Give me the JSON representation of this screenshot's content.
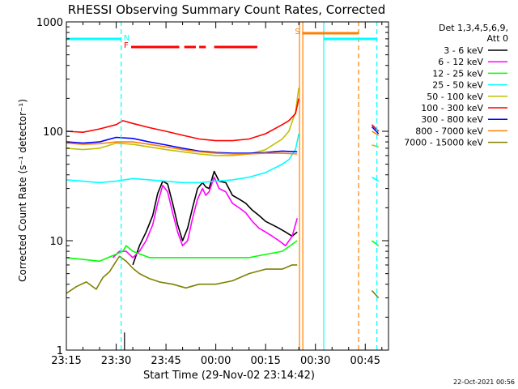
{
  "chart_data": {
    "type": "line",
    "title": "RHESSI Observing Summary Count Rates, Corrected",
    "xlabel": "Start Time (29-Nov-02 23:14:42)",
    "ylabel": "Corrected Count Rate (s⁻¹ detector⁻¹)",
    "yscale": "log",
    "ylim": [
      1,
      1000
    ],
    "xlim_minutes_after_23_15": [
      0,
      97
    ],
    "x_tick_labels": [
      "23:15",
      "23:30",
      "23:45",
      "00:00",
      "00:15",
      "00:30",
      "00:45"
    ],
    "x_tick_minutes": [
      0,
      15,
      30,
      45,
      60,
      75,
      90
    ],
    "y_tick_labels": [
      "1",
      "10",
      "100",
      "1000"
    ],
    "y_tick_values": [
      1,
      10,
      100,
      1000
    ],
    "legend_header": [
      "Det 1,3,4,5,6,9,",
      "Att 0"
    ],
    "legend_position": "right",
    "timestamp": "22-Oct-2021 00:56",
    "flags": [
      {
        "label": "N",
        "color": "#00ffff",
        "segments": [
          [
            0,
            16.5
          ],
          [
            77.5,
            93.5
          ]
        ]
      },
      {
        "label": "F",
        "color": "#ff0000",
        "segments": [
          [
            19.5,
            34
          ],
          [
            35.5,
            39
          ],
          [
            40,
            42
          ],
          [
            44.5,
            57.5
          ]
        ]
      },
      {
        "label": "S",
        "color": "#ff8000",
        "segments": [
          [
            71,
            88
          ]
        ]
      }
    ],
    "vlines": [
      {
        "x": 16.5,
        "color": "#00ffff",
        "style": "dashed",
        "ymax": 1000
      },
      {
        "x": 17.5,
        "color": "#000000",
        "style": "solid",
        "ymax": 1.45
      },
      {
        "x": 70.2,
        "color": "#ff8000",
        "style": "solid",
        "ymax": 1000
      },
      {
        "x": 71.2,
        "color": "#ff8000",
        "style": "solid",
        "ymax": 1000
      },
      {
        "x": 77.5,
        "color": "#00ffff",
        "style": "solid",
        "ymax": 1000
      },
      {
        "x": 88,
        "color": "#ff8000",
        "style": "dashed",
        "ymax": 1000
      },
      {
        "x": 93.5,
        "color": "#00ffff",
        "style": "dashed",
        "ymax": 1000
      }
    ],
    "series": [
      {
        "name": "3 - 6 keV",
        "color": "#000000",
        "x": [
          20,
          22,
          24,
          26,
          27.5,
          29,
          30.5,
          32,
          33.5,
          35,
          36.5,
          38,
          39.5,
          41,
          42,
          43,
          44.5,
          46,
          48,
          50,
          52,
          54,
          56,
          58,
          60,
          62,
          64,
          66,
          68,
          69.5
        ],
        "y": [
          6,
          9,
          12,
          17,
          27,
          35,
          33,
          22,
          14,
          10,
          13,
          20,
          30,
          34,
          31,
          30,
          43,
          35,
          34,
          26,
          24,
          22,
          19,
          17,
          15,
          14,
          13,
          12,
          11,
          12
        ]
      },
      {
        "name": "6 - 12 keV",
        "color": "#ff00ff",
        "x": [
          14,
          16,
          18,
          20,
          22,
          24,
          26,
          27.5,
          29,
          30.5,
          32,
          33.5,
          35,
          36.5,
          38,
          39.5,
          41,
          42,
          43,
          44.5,
          46,
          48,
          50,
          52,
          54,
          56,
          58,
          60,
          62,
          64,
          66,
          68,
          69.5
        ],
        "y": [
          7,
          8,
          8,
          7,
          8,
          10,
          14,
          22,
          32,
          28,
          18,
          12,
          9,
          10,
          16,
          24,
          30,
          26,
          28,
          38,
          30,
          28,
          22,
          20,
          18,
          15,
          13,
          12,
          11,
          10,
          9,
          11,
          16
        ]
      },
      {
        "name": "12 - 25 keV",
        "color": "#00ff00",
        "x": [
          0,
          10,
          17,
          18,
          20,
          25,
          30,
          35,
          40,
          45,
          50,
          55,
          60,
          65,
          69.5,
          92,
          94
        ],
        "y": [
          7,
          6.5,
          8,
          9,
          8,
          7,
          7,
          7,
          7,
          7,
          7,
          7,
          7.5,
          8,
          10,
          10,
          9
        ]
      },
      {
        "name": "25 - 50 keV",
        "color": "#00ffff",
        "x": [
          0,
          5,
          10,
          15,
          20,
          25,
          30,
          35,
          40,
          45,
          50,
          55,
          60,
          65,
          67,
          69,
          70,
          92,
          94
        ],
        "y": [
          36,
          35,
          34,
          35,
          37,
          36,
          35,
          34,
          34,
          35,
          36,
          38,
          42,
          50,
          55,
          68,
          95,
          38,
          35
        ]
      },
      {
        "name": "50 - 100 keV",
        "color": "#c0c000",
        "x": [
          0,
          5,
          10,
          15,
          20,
          25,
          30,
          35,
          40,
          45,
          50,
          55,
          60,
          65,
          67,
          69,
          70,
          92,
          94
        ],
        "y": [
          70,
          68,
          70,
          78,
          76,
          72,
          68,
          65,
          62,
          60,
          60,
          62,
          68,
          85,
          100,
          150,
          250,
          75,
          72
        ]
      },
      {
        "name": "100 - 300 keV",
        "color": "#ff0000",
        "x": [
          0,
          5,
          10,
          15,
          17,
          20,
          25,
          30,
          35,
          40,
          45,
          50,
          55,
          60,
          65,
          67,
          69,
          70,
          92,
          94
        ],
        "y": [
          100,
          98,
          105,
          115,
          125,
          118,
          108,
          100,
          92,
          85,
          82,
          82,
          85,
          95,
          115,
          125,
          145,
          200,
          115,
          100
        ]
      },
      {
        "name": "300 - 800 keV",
        "color": "#0000ff",
        "x": [
          0,
          5,
          10,
          15,
          20,
          25,
          30,
          35,
          40,
          45,
          50,
          55,
          60,
          65,
          69.5,
          92,
          94
        ],
        "y": [
          80,
          78,
          80,
          88,
          86,
          80,
          75,
          70,
          66,
          64,
          63,
          63,
          64,
          66,
          65,
          110,
          95
        ]
      },
      {
        "name": "800 - 7000 keV",
        "color": "#ff8000",
        "x": [
          0,
          5,
          10,
          15,
          20,
          25,
          30,
          35,
          40,
          45,
          50,
          55,
          60,
          65,
          69.5,
          92,
          94
        ],
        "y": [
          78,
          76,
          77,
          80,
          80,
          76,
          72,
          68,
          65,
          63,
          62,
          62,
          63,
          63,
          62,
          100,
          92
        ]
      },
      {
        "name": "7000 - 15000 keV",
        "color": "#808000",
        "x": [
          0,
          3,
          6,
          9,
          11,
          13,
          15,
          16,
          18,
          20,
          22,
          25,
          28,
          32,
          36,
          40,
          45,
          50,
          55,
          60,
          65,
          68,
          69.5,
          92,
          94
        ],
        "y": [
          3.3,
          3.8,
          4.2,
          3.6,
          4.6,
          5.2,
          6.5,
          7.2,
          6.5,
          5.6,
          5.0,
          4.5,
          4.2,
          4.0,
          3.7,
          4.0,
          4.0,
          4.3,
          5.0,
          5.5,
          5.5,
          6.0,
          6.0,
          3.5,
          3.0
        ]
      }
    ]
  }
}
